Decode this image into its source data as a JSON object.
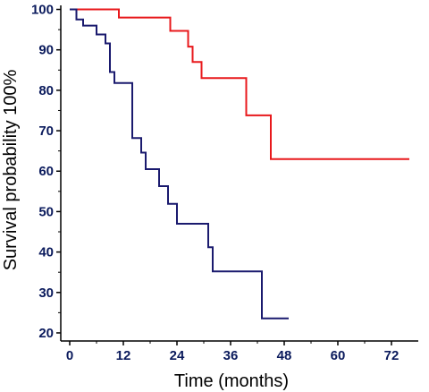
{
  "chart_data": {
    "type": "line",
    "step": true,
    "title": "",
    "xlabel": "Time (months)",
    "ylabel": "Survival probability 100%",
    "xlim": [
      -2,
      78
    ],
    "ylim": [
      18,
      101
    ],
    "x_ticks": [
      0,
      12,
      24,
      36,
      48,
      60,
      72
    ],
    "y_ticks": [
      20,
      30,
      40,
      50,
      60,
      70,
      80,
      90,
      100
    ],
    "grid": false,
    "series": [
      {
        "color": "#e8191c",
        "points": [
          [
            0,
            100
          ],
          [
            11,
            100
          ],
          [
            11,
            98
          ],
          [
            22.5,
            98
          ],
          [
            22.5,
            94.7
          ],
          [
            26.5,
            94.7
          ],
          [
            26.5,
            90.8
          ],
          [
            27.5,
            90.8
          ],
          [
            27.5,
            87
          ],
          [
            29.5,
            87
          ],
          [
            29.5,
            83
          ],
          [
            39.5,
            83
          ],
          [
            39.5,
            73.8
          ],
          [
            45,
            73.8
          ],
          [
            45,
            63
          ],
          [
            76,
            63
          ]
        ]
      },
      {
        "color": "#1a1a6e",
        "points": [
          [
            0,
            100
          ],
          [
            1.5,
            100
          ],
          [
            1.5,
            97.5
          ],
          [
            3,
            97.5
          ],
          [
            3,
            96
          ],
          [
            6,
            96
          ],
          [
            6,
            93.8
          ],
          [
            8,
            93.8
          ],
          [
            8,
            91.6
          ],
          [
            9,
            91.6
          ],
          [
            9,
            84.5
          ],
          [
            10,
            84.5
          ],
          [
            10,
            81.8
          ],
          [
            14,
            81.8
          ],
          [
            14,
            68.2
          ],
          [
            16,
            68.2
          ],
          [
            16,
            64.6
          ],
          [
            17,
            64.6
          ],
          [
            17,
            60.5
          ],
          [
            20,
            60.5
          ],
          [
            20,
            56.3
          ],
          [
            22,
            56.3
          ],
          [
            22,
            51.9
          ],
          [
            24,
            51.9
          ],
          [
            24,
            47
          ],
          [
            31,
            47
          ],
          [
            31,
            41.2
          ],
          [
            32,
            41.2
          ],
          [
            32,
            35.2
          ],
          [
            43,
            35.2
          ],
          [
            43,
            23.6
          ],
          [
            49,
            23.6
          ]
        ]
      }
    ]
  }
}
